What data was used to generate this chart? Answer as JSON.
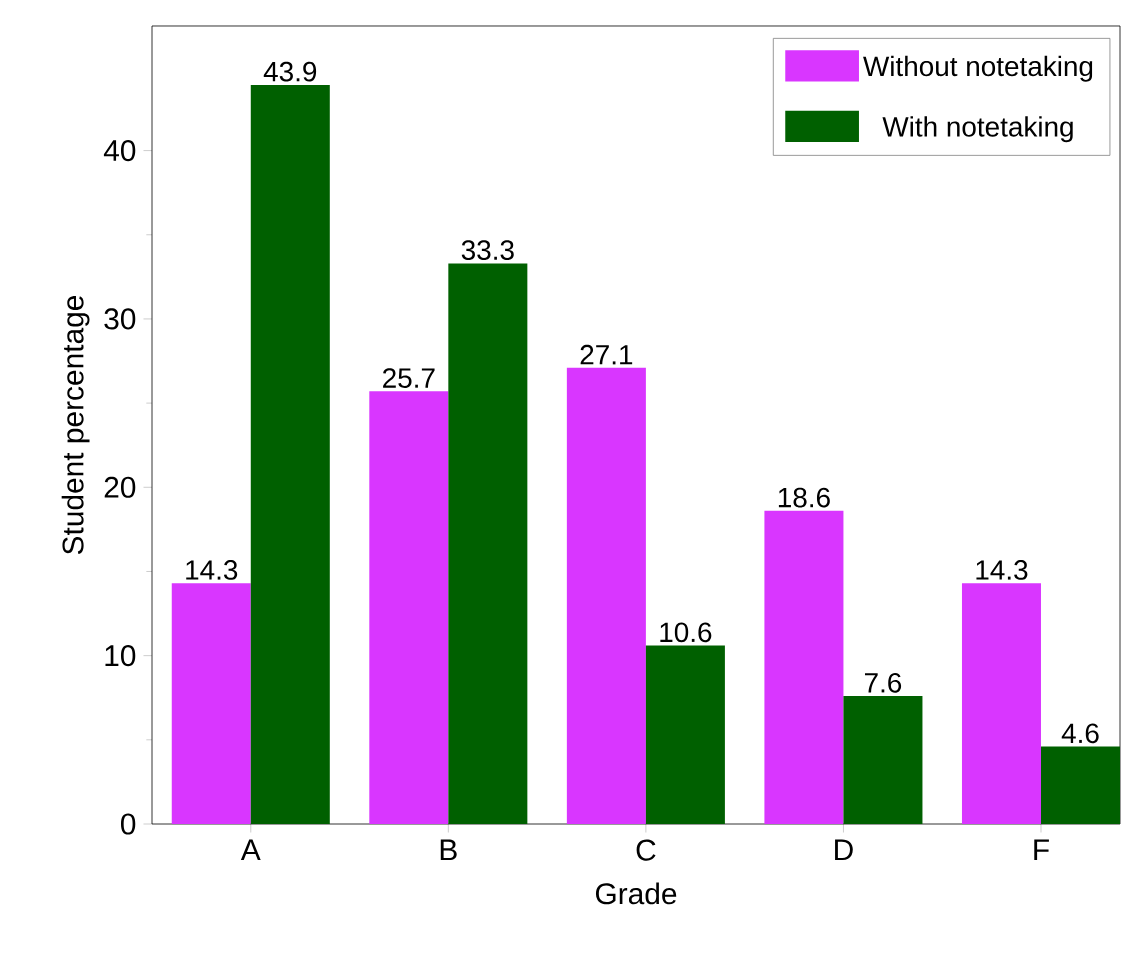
{
  "chart_data": {
    "type": "bar",
    "xlabel": "Grade",
    "ylabel": "Student percentage",
    "categories": [
      "A",
      "B",
      "C",
      "D",
      "F"
    ],
    "series": [
      {
        "name": "Without notetaking",
        "color": "#d936ff",
        "values": [
          14.3,
          25.7,
          27.1,
          18.6,
          14.3
        ]
      },
      {
        "name": "With notetaking",
        "color": "#006000",
        "values": [
          43.9,
          33.3,
          10.6,
          7.6,
          4.6
        ]
      }
    ],
    "ylim": [
      0,
      47.4
    ],
    "yticks": [
      0,
      10,
      20,
      30,
      40
    ],
    "data_labels": true,
    "legend": "top right",
    "grid": false
  }
}
